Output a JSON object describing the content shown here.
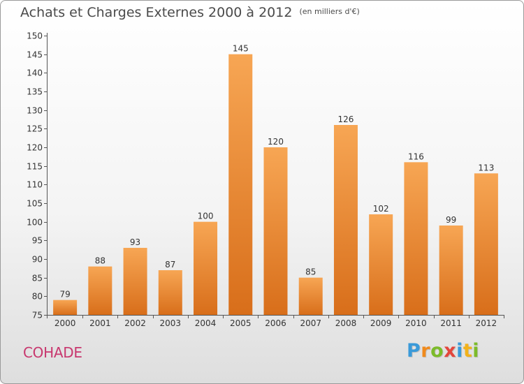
{
  "header": {
    "title": "Achats et Charges Externes 2000 à 2012",
    "subtitle": "(en milliers d'€)"
  },
  "footer": {
    "commune": "COHADE",
    "logo_text": "Proxiti"
  },
  "colors": {
    "bar_top": "#f7a654",
    "bar_bottom": "#d86e1a",
    "commune_text": "#c8376e",
    "axis": "#555555"
  },
  "chart_data": {
    "type": "bar",
    "title": "Achats et Charges Externes 2000 à 2012",
    "subtitle": "(en milliers d'€)",
    "xlabel": "",
    "ylabel": "",
    "categories": [
      "2000",
      "2001",
      "2002",
      "2003",
      "2004",
      "2005",
      "2006",
      "2007",
      "2008",
      "2009",
      "2010",
      "2011",
      "2012"
    ],
    "values": [
      79,
      88,
      93,
      87,
      100,
      145,
      120,
      85,
      126,
      102,
      116,
      99,
      113
    ],
    "ylim": [
      75,
      150
    ],
    "yticks": [
      75,
      80,
      85,
      90,
      95,
      100,
      105,
      110,
      115,
      120,
      125,
      130,
      135,
      140,
      145,
      150
    ],
    "grid": false,
    "legend": "none",
    "data_labels": true
  }
}
